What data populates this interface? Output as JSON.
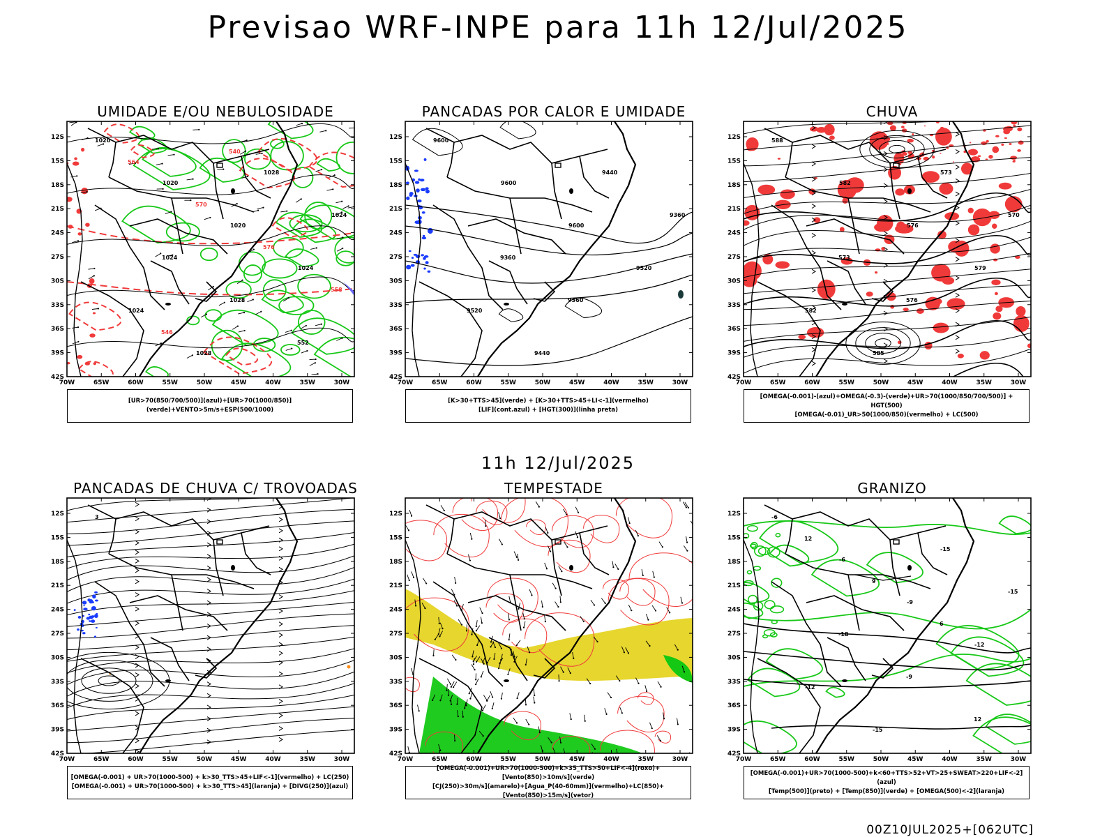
{
  "title": "Previsao WRF-INPE  para 11h 12/Jul/2025",
  "mid_title": "11h 12/Jul/2025",
  "footer": "00Z10JUL2025+[062UTC]",
  "lat_labels": [
    "12S",
    "15S",
    "18S",
    "21S",
    "24S",
    "27S",
    "30S",
    "33S",
    "36S",
    "39S",
    "42S"
  ],
  "lon_labels": [
    "70W",
    "65W",
    "60W",
    "55W",
    "50W",
    "45W",
    "40W",
    "35W",
    "30W"
  ],
  "panels": [
    {
      "id": "umidade",
      "title": "UMIDADE E/OU NEBULOSIDADE",
      "legend": [
        "[UR>70(850/700/500)](azul)+[UR>70(1000/850)](verde)+VENTO>5m/s+ESP(500/1000)"
      ],
      "contour_labels": [
        "1020",
        "1020",
        "1020",
        "1024",
        "1024",
        "1028",
        "1028",
        "1024",
        "1024",
        "1028",
        "552",
        "564",
        "570",
        "576",
        "558",
        "546",
        "540"
      ],
      "colors": {
        "green": "#18c818",
        "red": "#f03a3a",
        "blue": "#6a6aff"
      }
    },
    {
      "id": "pancadas-calor",
      "title": "PANCADAS POR CALOR E UMIDADE",
      "legend": [
        "[K>30+TTS>45](verde) + [K>30+TTS>45+LI<-1](vermelho)",
        "[LIF](cont.azul) + [HGT(300)](linha preta)"
      ],
      "contour_labels": [
        "9600",
        "9600",
        "9600",
        "9520",
        "9520",
        "9440",
        "9440",
        "9360",
        "9360",
        "9360"
      ],
      "colors": {
        "blue": "#1a3cff"
      }
    },
    {
      "id": "chuva",
      "title": "CHUVA",
      "legend": [
        "[OMEGA(-0.001)-(azul)+OMEGA(-0.3)-(verde)+UR>70(1000/850/700/500)] + HGT(500)",
        "[OMEGA(-0.01)_UR>50(1000/850)(vermelho) + LC(500)"
      ],
      "contour_labels": [
        "588",
        "582",
        "576",
        "579",
        "582",
        "585",
        "573",
        "570",
        "573",
        "576"
      ],
      "colors": {
        "red": "#f03a3a"
      }
    },
    {
      "id": "trovoadas",
      "title": "PANCADAS DE CHUVA C/ TROVOADAS",
      "legend": [
        "[OMEGA(-0.001) + UR>70(1000-500) + k>30_TTS>45+LIF<-1](vermelho) + LC(250)",
        "[OMEGA(-0.001) + UR>70(1000-500) + k>30_TTS>45](laranja) + [DIVG(250)](azul)"
      ],
      "contour_labels": [
        "3"
      ],
      "colors": {
        "blue": "#1a3cff",
        "orange": "#ff8c1a"
      }
    },
    {
      "id": "tempestade",
      "title": "TEMPESTADE",
      "legend": [
        "[OMEGA(-0.001)+UR>70(1000-500)+k>35_TTS>50+LIF<-4](roxo)+[Vento(850)>10m/s](verde)",
        "[CJ(250)>30m/s](amarelo)+[Agua_P(40-60mm)](vermelho)+LC(850)+[Vento(850)>15m/s](vetor)"
      ],
      "contour_labels": [],
      "colors": {
        "yellow": "#e6d62e",
        "green": "#14c814",
        "red": "#f03a3a"
      }
    },
    {
      "id": "granizo",
      "title": "GRANIZO",
      "legend": [
        "[OMEGA(-0.001)+UR>70(1000-500)+k<60+TTS>52+VT>25+SWEAT>220+LIF<-2](azul)",
        "[Temp(500)](preto) + [Temp(850)](verde) + [OMEGA(500)<-2](laranja)"
      ],
      "contour_labels": [
        "-6",
        "-6",
        "-9",
        "-12",
        "-12",
        "-15",
        "-15",
        "-15",
        "-18",
        "-9",
        "12",
        "12",
        "9",
        "6"
      ],
      "colors": {
        "green": "#18c818"
      }
    }
  ]
}
